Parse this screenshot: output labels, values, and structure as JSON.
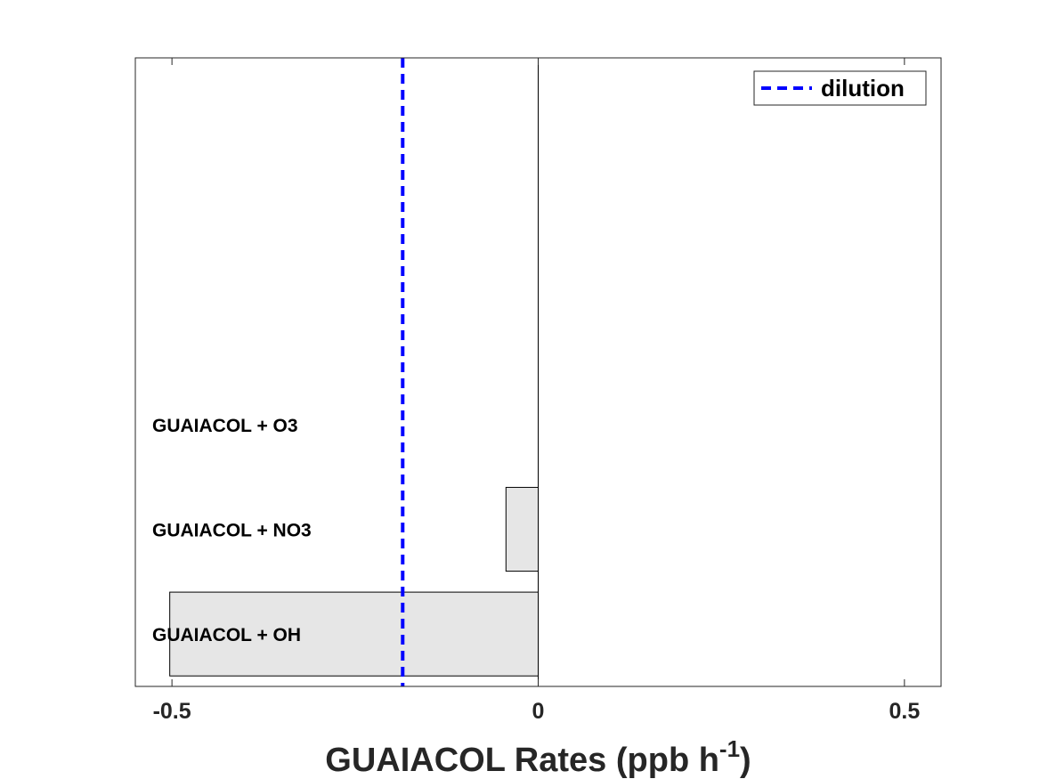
{
  "chart_data": {
    "type": "bar",
    "orientation": "horizontal",
    "categories": [
      "GUAIACOL + OH",
      "GUAIACOL + NO3",
      "GUAIACOL + O3"
    ],
    "values": [
      -0.503,
      -0.044,
      0.0
    ],
    "reference_line": {
      "name": "dilution",
      "x": -0.185,
      "style": "dashed",
      "color": "#0000ff"
    },
    "xlabel_main": "GUAIACOL Rates (ppb h",
    "xlabel_sup": "-1",
    "xlabel_close": ")",
    "xlim": [
      -0.55,
      0.55
    ],
    "xticks": [
      -0.5,
      0,
      0.5
    ],
    "xtick_labels": [
      "-0.5",
      "0",
      "0.5"
    ],
    "category_slots": 6,
    "bar_color": "#e6e6e6",
    "legend": {
      "entries": [
        "dilution"
      ],
      "position": "top-right"
    },
    "grid": false
  }
}
